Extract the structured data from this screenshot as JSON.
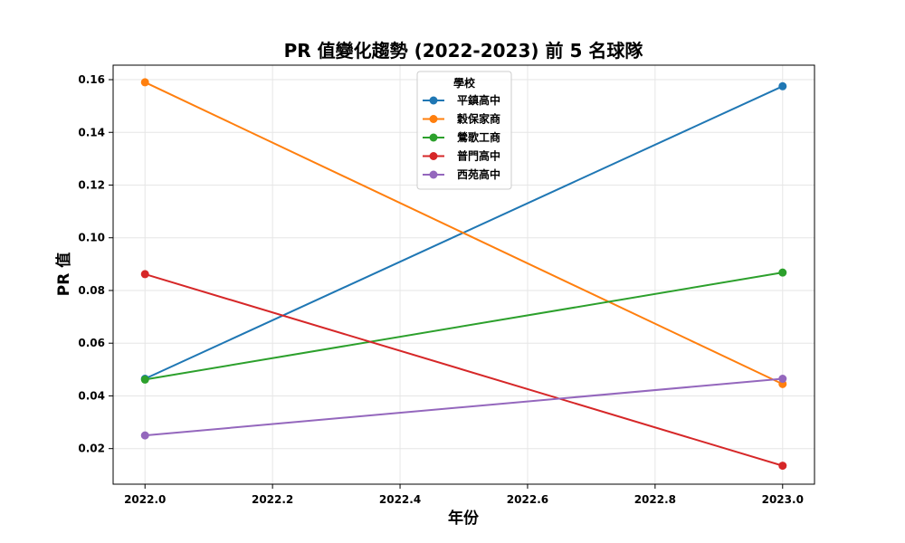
{
  "chart_data": {
    "type": "line",
    "title": "PR 值變化趨勢 (2022-2023) 前 5 名球隊",
    "xlabel": "年份",
    "ylabel": "PR 值",
    "x": [
      2022.0,
      2023.0
    ],
    "xlim": [
      2021.95,
      2023.05
    ],
    "ylim": [
      0.0065,
      0.1655
    ],
    "xticks": [
      2022.0,
      2022.2,
      2022.4,
      2022.6,
      2022.8,
      2023.0
    ],
    "xtick_labels": [
      "2022.0",
      "2022.2",
      "2022.4",
      "2022.6",
      "2022.8",
      "2023.0"
    ],
    "yticks": [
      0.02,
      0.04,
      0.06,
      0.08,
      0.1,
      0.12,
      0.14,
      0.16
    ],
    "ytick_labels": [
      "0.02",
      "0.04",
      "0.06",
      "0.08",
      "0.10",
      "0.12",
      "0.14",
      "0.16"
    ],
    "grid": true,
    "legend": {
      "title": "學校",
      "position": "top-center"
    },
    "series": [
      {
        "name": "平鎮高中",
        "color": "#1f77b4",
        "values": [
          0.0465,
          0.1575
        ]
      },
      {
        "name": "穀保家商",
        "color": "#ff7f0e",
        "values": [
          0.159,
          0.0445
        ]
      },
      {
        "name": "鶯歌工商",
        "color": "#2ca02c",
        "values": [
          0.0462,
          0.0868
        ]
      },
      {
        "name": "普門高中",
        "color": "#d62728",
        "values": [
          0.0862,
          0.0135
        ]
      },
      {
        "name": "西苑高中",
        "color": "#9467bd",
        "values": [
          0.025,
          0.0465
        ]
      }
    ]
  }
}
